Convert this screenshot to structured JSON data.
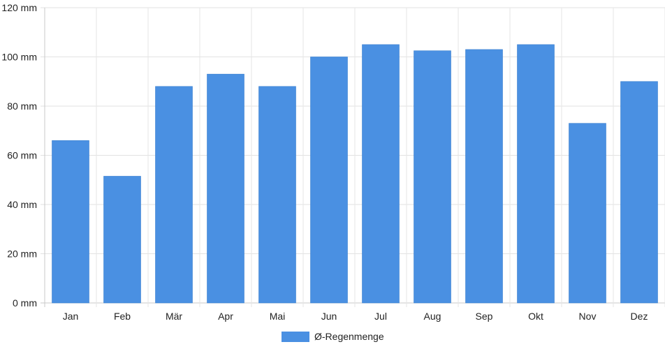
{
  "chart_data": {
    "type": "bar",
    "categories": [
      "Jan",
      "Feb",
      "Mär",
      "Apr",
      "Mai",
      "Jun",
      "Jul",
      "Aug",
      "Sep",
      "Okt",
      "Nov",
      "Dez"
    ],
    "series": [
      {
        "name": "Ø-Regenmenge",
        "values": [
          66,
          51.5,
          88,
          93,
          88,
          100,
          105,
          102.5,
          103,
          105,
          73,
          90
        ],
        "color": "#4a90e2"
      }
    ],
    "ylim": [
      0,
      120
    ],
    "y_ticks": [
      0,
      20,
      40,
      60,
      80,
      100,
      120
    ],
    "y_tick_labels": [
      "0 mm",
      "20 mm",
      "40 mm",
      "60 mm",
      "80 mm",
      "100 mm",
      "120 mm"
    ],
    "grid": true,
    "legend_position": "bottom-center",
    "title": "",
    "xlabel": "",
    "ylabel": ""
  }
}
